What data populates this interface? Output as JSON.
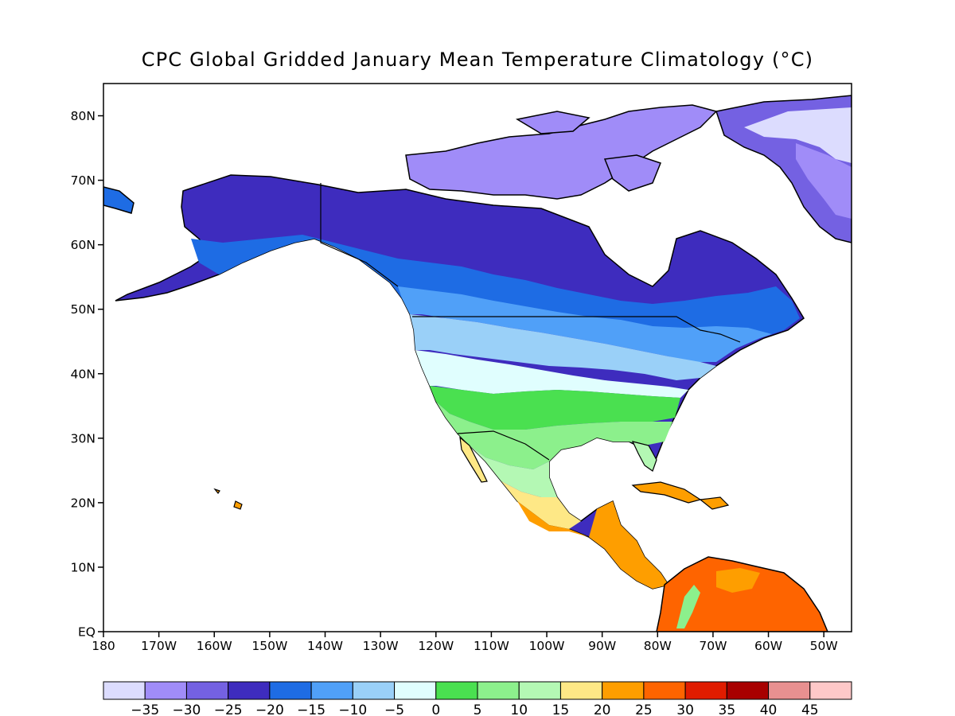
{
  "title": "CPC Global Gridded January Mean Temperature Climatology (°C)",
  "map": {
    "lon_range": [
      -180,
      -45
    ],
    "lat_range": [
      0,
      85
    ],
    "lat_ticks": [
      {
        "value": 80,
        "label": "80N"
      },
      {
        "value": 70,
        "label": "70N"
      },
      {
        "value": 60,
        "label": "60N"
      },
      {
        "value": 50,
        "label": "50N"
      },
      {
        "value": 40,
        "label": "40N"
      },
      {
        "value": 30,
        "label": "30N"
      },
      {
        "value": 20,
        "label": "20N"
      },
      {
        "value": 10,
        "label": "10N"
      },
      {
        "value": 0,
        "label": "EQ"
      }
    ],
    "lon_ticks": [
      {
        "value": -180,
        "label": "180"
      },
      {
        "value": -170,
        "label": "170W"
      },
      {
        "value": -160,
        "label": "160W"
      },
      {
        "value": -150,
        "label": "150W"
      },
      {
        "value": -140,
        "label": "140W"
      },
      {
        "value": -130,
        "label": "130W"
      },
      {
        "value": -120,
        "label": "120W"
      },
      {
        "value": -110,
        "label": "110W"
      },
      {
        "value": -100,
        "label": "100W"
      },
      {
        "value": -90,
        "label": "90W"
      },
      {
        "value": -80,
        "label": "80W"
      },
      {
        "value": -70,
        "label": "70W"
      },
      {
        "value": -60,
        "label": "60W"
      },
      {
        "value": -50,
        "label": "50W"
      }
    ]
  },
  "colorbar": {
    "colors": [
      "#dcdcfe",
      "#a08cf8",
      "#7461e2",
      "#3e2cbe",
      "#1e6ce4",
      "#50a0f8",
      "#9ad0f8",
      "#e0fefe",
      "#4ae050",
      "#8cf08c",
      "#b4f8b4",
      "#fee886",
      "#fe9e00",
      "#fe6400",
      "#e01c00",
      "#a80000",
      "#e89090",
      "#fec8c8"
    ],
    "labels": [
      "−35",
      "−30",
      "−25",
      "−20",
      "−15",
      "−10",
      "−5",
      "0",
      "5",
      "10",
      "15",
      "20",
      "25",
      "30",
      "35",
      "40",
      "45"
    ]
  }
}
